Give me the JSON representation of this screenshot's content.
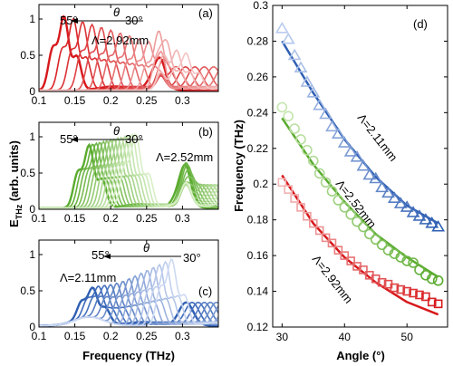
{
  "chart_data": [
    {
      "type": "line",
      "panel": "(a)",
      "angle_label": "θ",
      "angle_start": "55°",
      "angle_end": "30°",
      "annotation": "Λ=2.92mm",
      "color": "#d7191c",
      "xlim": [
        0.1,
        0.35
      ],
      "ylim": [
        0,
        1.2
      ],
      "xticks": [
        "0.1",
        "0.15",
        "0.2",
        "0.25",
        "0.3"
      ],
      "xtick_values": [
        0.1,
        0.15,
        0.2,
        0.25,
        0.3
      ],
      "yticks": [
        "0",
        "0.5",
        "1"
      ],
      "ytick_values": [
        0,
        0.5,
        1
      ],
      "series_count": 14,
      "peak_freq_start": 0.135,
      "peak_freq_end": 0.305,
      "peak_amp_start": 1.0,
      "peak_amp_end": 0.5,
      "series": []
    },
    {
      "type": "line",
      "panel": "(b)",
      "angle_label": "θ",
      "angle_start": "55°",
      "angle_end": "30°",
      "annotation": "Λ=2.52mm",
      "color": "#5aab2e",
      "xlim": [
        0.1,
        0.35
      ],
      "ylim": [
        0,
        1.2
      ],
      "xticks": [
        "0.1",
        "0.15",
        "0.2",
        "0.25",
        "0.3"
      ],
      "xtick_values": [
        0.1,
        0.15,
        0.2,
        0.25,
        0.3
      ],
      "yticks": [
        "0",
        "0.5",
        "1"
      ],
      "ytick_values": [
        0,
        0.5,
        1
      ],
      "series_count": 14,
      "peak_freq_start": 0.17,
      "peak_freq_end": 0.235,
      "peak_amp_start": 0.85,
      "peak_amp_end": 1.0,
      "series": []
    },
    {
      "type": "line",
      "panel": "(c)",
      "angle_label": "θ",
      "angle_start": "55°",
      "angle_end": "30°",
      "annotation": "Λ=2.11mm",
      "color": "#2f5fb3",
      "xlim": [
        0.1,
        0.35
      ],
      "ylim": [
        0,
        1.2
      ],
      "xticks": [
        "0.1",
        "0.15",
        "0.2",
        "0.25",
        "0.3"
      ],
      "xtick_values": [
        0.1,
        0.15,
        0.2,
        0.25,
        0.3
      ],
      "yticks": [
        "0",
        "0.5",
        "1"
      ],
      "ytick_values": [
        0,
        0.5,
        1
      ],
      "series_count": 14,
      "peak_freq_start": 0.175,
      "peak_freq_end": 0.285,
      "peak_amp_start": 0.4,
      "peak_amp_end": 0.9,
      "series": []
    },
    {
      "type": "scatter",
      "panel": "(d)",
      "xlabel": "Angle (°)",
      "ylabel": "Frequency (THz)",
      "xlim": [
        28.5,
        56.5
      ],
      "ylim": [
        0.12,
        0.3
      ],
      "xticks": [
        "30",
        "40",
        "50"
      ],
      "xtick_values": [
        30,
        40,
        50
      ],
      "yticks": [
        "0.12",
        "0.14",
        "0.16",
        "0.18",
        "0.2",
        "0.22",
        "0.24",
        "0.26",
        "0.28",
        "0.3"
      ],
      "ytick_values": [
        0.12,
        0.14,
        0.16,
        0.18,
        0.2,
        0.22,
        0.24,
        0.26,
        0.28,
        0.3
      ],
      "series": [
        {
          "name": "Λ=2.11mm",
          "marker": "triangle",
          "color": "#2f5fb3",
          "x": [
            30,
            31,
            32,
            33,
            34,
            35,
            36,
            37,
            38,
            39,
            40,
            41,
            42,
            43,
            44,
            45,
            46,
            47,
            48,
            49,
            50,
            51,
            52,
            53,
            54,
            55
          ],
          "y": [
            0.287,
            0.281,
            0.272,
            0.265,
            0.257,
            0.251,
            0.244,
            0.239,
            0.232,
            0.228,
            0.223,
            0.218,
            0.215,
            0.21,
            0.205,
            0.203,
            0.198,
            0.195,
            0.192,
            0.189,
            0.187,
            0.184,
            0.182,
            0.18,
            0.178,
            0.176
          ],
          "fit_x": [
            30,
            35,
            40,
            45,
            50,
            55
          ],
          "fit_y": [
            0.28,
            0.251,
            0.225,
            0.204,
            0.188,
            0.178
          ]
        },
        {
          "name": "Λ=2.52mm",
          "marker": "circle",
          "color": "#5aab2e",
          "x": [
            30,
            31,
            32,
            33,
            34,
            35,
            36,
            37,
            38,
            39,
            40,
            41,
            42,
            43,
            44,
            45,
            46,
            47,
            48,
            49,
            50,
            51,
            52,
            53,
            54,
            55
          ],
          "y": [
            0.243,
            0.238,
            0.231,
            0.225,
            0.219,
            0.213,
            0.206,
            0.201,
            0.196,
            0.191,
            0.187,
            0.183,
            0.179,
            0.176,
            0.172,
            0.169,
            0.166,
            0.163,
            0.161,
            0.159,
            0.157,
            0.156,
            0.152,
            0.149,
            0.147,
            0.146
          ],
          "fit_x": [
            30,
            35,
            40,
            45,
            50,
            55
          ],
          "fit_y": [
            0.237,
            0.211,
            0.19,
            0.172,
            0.159,
            0.148
          ]
        },
        {
          "name": "Λ=2.92mm",
          "marker": "square",
          "color": "#d7191c",
          "x": [
            30,
            31,
            32,
            33,
            34,
            35,
            36,
            37,
            38,
            39,
            40,
            41,
            42,
            43,
            44,
            45,
            46,
            47,
            48,
            49,
            50,
            51,
            52,
            53,
            54,
            55
          ],
          "y": [
            0.201,
            0.197,
            0.192,
            0.187,
            0.182,
            0.178,
            0.174,
            0.17,
            0.167,
            0.163,
            0.16,
            0.157,
            0.154,
            0.152,
            0.149,
            0.147,
            0.145,
            0.144,
            0.142,
            0.141,
            0.14,
            0.139,
            0.138,
            0.137,
            0.134,
            0.133
          ],
          "fit_x": [
            30,
            35,
            40,
            45,
            50,
            55
          ],
          "fit_y": [
            0.205,
            0.178,
            0.159,
            0.145,
            0.134,
            0.127
          ]
        }
      ]
    }
  ],
  "shared": {
    "left_ylabel_main": "E",
    "left_ylabel_sub": "THz",
    "left_ylabel_rest": " (arb. units)",
    "left_xlabel": "Frequency (THz)"
  }
}
